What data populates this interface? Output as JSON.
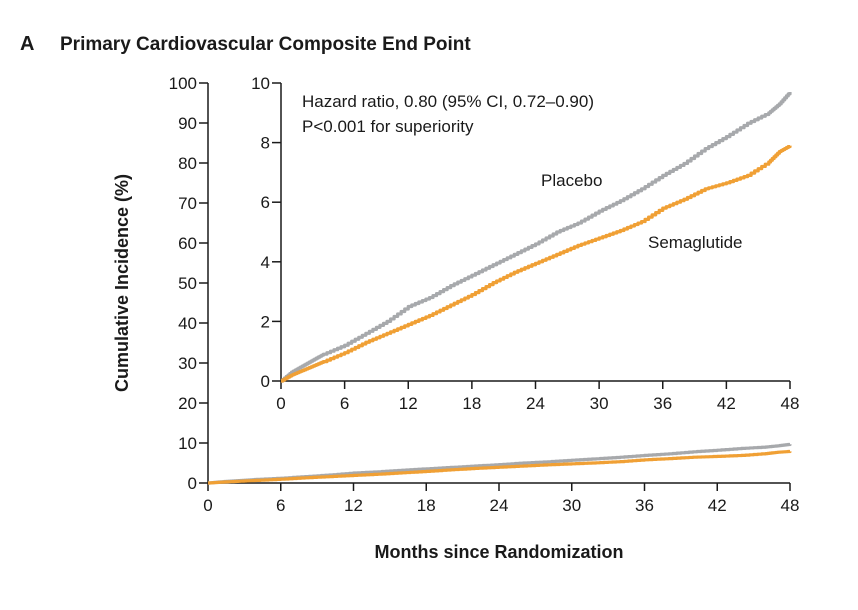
{
  "panel_letter": "A",
  "chart_data": {
    "type": "line",
    "title": "Primary Cardiovascular Composite End Point",
    "xlabel": "Months since Randomization",
    "ylabel": "Cumulative Incidence (%)",
    "x_ticks": [
      "0",
      "6",
      "12",
      "18",
      "24",
      "30",
      "36",
      "42",
      "48"
    ],
    "xlim": [
      0,
      48
    ],
    "main_axis": {
      "ylim": [
        0,
        100
      ],
      "y_ticks": [
        "0",
        "10",
        "20",
        "30",
        "40",
        "50",
        "60",
        "70",
        "80",
        "90",
        "100"
      ]
    },
    "inset_axis": {
      "ylim": [
        0,
        10
      ],
      "y_ticks": [
        "0",
        "2",
        "4",
        "6",
        "8",
        "10"
      ]
    },
    "annotations": [
      "Hazard ratio, 0.80 (95% CI, 0.72–0.90)",
      "P<0.001 for superiority"
    ],
    "series": [
      {
        "name": "Placebo",
        "color": "#a7a9ac",
        "x": [
          0,
          1,
          2,
          3,
          4,
          6,
          8,
          10,
          12,
          14,
          16,
          18,
          20,
          22,
          24,
          26,
          28,
          30,
          32,
          34,
          36,
          38,
          40,
          42,
          44,
          46,
          47,
          48
        ],
        "y": [
          0,
          0.3,
          0.5,
          0.7,
          0.9,
          1.2,
          1.6,
          2.0,
          2.5,
          2.8,
          3.2,
          3.55,
          3.9,
          4.25,
          4.6,
          5.0,
          5.3,
          5.7,
          6.05,
          6.45,
          6.9,
          7.3,
          7.8,
          8.2,
          8.65,
          9.0,
          9.3,
          9.7
        ]
      },
      {
        "name": "Semaglutide",
        "color": "#f0a035",
        "x": [
          0,
          1,
          2,
          3,
          4,
          6,
          8,
          10,
          12,
          14,
          16,
          18,
          20,
          22,
          24,
          26,
          28,
          30,
          32,
          34,
          36,
          38,
          40,
          42,
          44,
          46,
          47,
          48
        ],
        "y": [
          0,
          0.2,
          0.35,
          0.5,
          0.65,
          0.95,
          1.3,
          1.6,
          1.9,
          2.2,
          2.55,
          2.9,
          3.3,
          3.65,
          3.95,
          4.25,
          4.55,
          4.8,
          5.05,
          5.35,
          5.8,
          6.1,
          6.45,
          6.65,
          6.9,
          7.35,
          7.7,
          7.9
        ]
      }
    ]
  }
}
